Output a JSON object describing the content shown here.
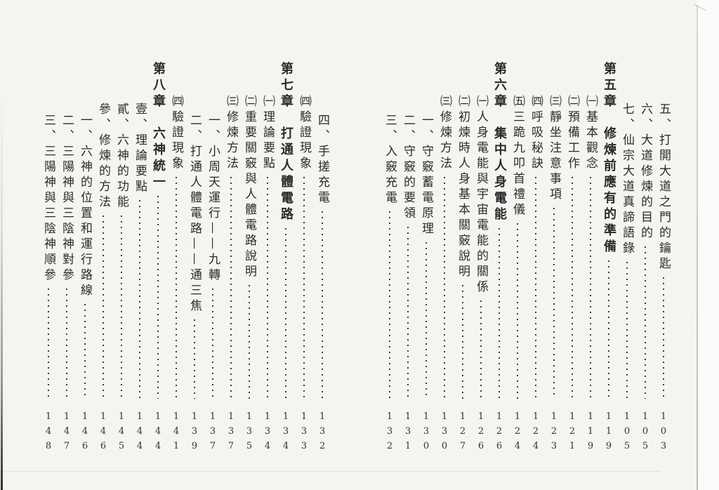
{
  "document": {
    "kind": "book-table-of-contents-scan",
    "language": "zh-Hant",
    "colors": {
      "page_bg": "#f5f4f0",
      "text": "#2b2b2b",
      "leader_dot": "#3c3c3c"
    },
    "pages": [
      {
        "side": "right",
        "entries": [
          {
            "level": "item1",
            "title": "五、打開大道之門的鑰匙",
            "page": "103"
          },
          {
            "level": "item1",
            "title": "六、大道修煉的目的",
            "page": "105"
          },
          {
            "level": "item1",
            "title": "七、仙宗大道真諦語錄",
            "page": "105"
          },
          {
            "level": "chapter",
            "title": "第五章　修煉前應有的準備",
            "page": "119"
          },
          {
            "level": "paren",
            "title": "㈠基本觀念",
            "page": "119"
          },
          {
            "level": "paren",
            "title": "㈡預備工作",
            "page": "121"
          },
          {
            "level": "paren",
            "title": "㈢靜坐注意事項",
            "page": "123"
          },
          {
            "level": "paren",
            "title": "㈣呼吸秘訣",
            "page": "124"
          },
          {
            "level": "paren",
            "title": "㈤三跪九叩首禮儀",
            "page": "124"
          },
          {
            "level": "chapter",
            "title": "第六章　集中人身電能",
            "page": "126"
          },
          {
            "level": "paren",
            "title": "㈠人身電能與宇宙電能的關係",
            "page": "126"
          },
          {
            "level": "paren",
            "title": "㈡初煉時人身基本關竅說明",
            "page": "127"
          },
          {
            "level": "paren",
            "title": "㈢修煉方法",
            "page": "130"
          },
          {
            "level": "item2",
            "title": "一、守竅蓄電原理",
            "page": "130"
          },
          {
            "level": "item2",
            "title": "二、守竅的要領",
            "page": "131"
          },
          {
            "level": "item2",
            "title": "三、入竅充電",
            "page": "132"
          }
        ]
      },
      {
        "side": "left",
        "entries": [
          {
            "level": "item2",
            "title": "四、手搓充電",
            "page": "132"
          },
          {
            "level": "paren",
            "title": "㈣驗證現象",
            "page": "133"
          },
          {
            "level": "chapter",
            "title": "第七章　打通人體電路",
            "page": "134"
          },
          {
            "level": "paren",
            "title": "㈠理論要點",
            "page": "134"
          },
          {
            "level": "paren",
            "title": "㈡重要關竅與人體電路說明",
            "page": "135"
          },
          {
            "level": "paren",
            "title": "㈢修煉方法",
            "page": "137"
          },
          {
            "level": "item2",
            "title": "一、小周天運行——九轉",
            "page": "137"
          },
          {
            "level": "item2",
            "title": "二、打通人體電路——通三焦",
            "page": "139"
          },
          {
            "level": "paren",
            "title": "㈣驗證現象",
            "page": "141"
          },
          {
            "level": "chapter",
            "title": "第八章　六神統一",
            "page": "144"
          },
          {
            "level": "item1",
            "title": "壹、理論要點",
            "page": "144"
          },
          {
            "level": "item1",
            "title": "貳、六神的功能",
            "page": "145"
          },
          {
            "level": "item1",
            "title": "參、修煉的方法",
            "page": "146"
          },
          {
            "level": "item2",
            "title": "一、六神的位置和運行路線",
            "page": "146"
          },
          {
            "level": "item2",
            "title": "二、三陽神與三陰神對參",
            "page": "147"
          },
          {
            "level": "item2",
            "title": "三、三陽神與三陰神順參",
            "page": "148"
          }
        ]
      }
    ]
  }
}
